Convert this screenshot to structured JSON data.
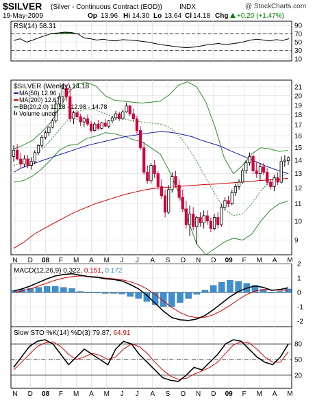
{
  "header": {
    "symbol": "$SILVER",
    "description": "(Silver - Continuous Contract (EOD))",
    "exchange": "INDX",
    "copyright": "@ StockCharts.com",
    "date": "19-May-2009",
    "op_label": "Op",
    "op": "13.96",
    "hi_label": "Hi",
    "hi": "14.30",
    "lo_label": "Lo",
    "lo": "13.64",
    "cl_label": "Cl",
    "cl": "14.18",
    "chg_label": "Chg",
    "chg": "+0.20 (+1.47%)",
    "chg_color": "#008000",
    "up_icon": "up-triangle-icon"
  },
  "colors": {
    "candle_up": "#000000",
    "candle_down": "#d0003a",
    "ma50": "#1a1aa0",
    "ma200": "#d00000",
    "bb": "#2c8a2c",
    "rsi_fill": "#2c6e2c",
    "macd": "#000000",
    "macd_signal": "#d00000",
    "macd_hist": "#3d8fd0",
    "sto_k": "#000000",
    "sto_d": "#d00000"
  },
  "x_axis_labels": [
    "N",
    "D",
    "08",
    "F",
    "M",
    "A",
    "M",
    "J",
    "J",
    "A",
    "S",
    "O",
    "N",
    "D",
    "09",
    "F",
    "M",
    "A",
    "M"
  ],
  "rsi_panel": {
    "label": "RSI(14)",
    "value": "58.31",
    "ticks": [
      "90",
      "70",
      "50",
      "30",
      "10"
    ],
    "upper": 70,
    "lower": 30
  },
  "price_panel": {
    "title": "$SILVER (Weekly)",
    "title_value": "14.18",
    "legend": [
      {
        "label": "MA(50)",
        "value": "12.96",
        "color": "#1a1aa0"
      },
      {
        "label": "MA(200)",
        "value": "12.67",
        "color": "#d00000"
      },
      {
        "label": "BB(20,2.0)",
        "value": "11.18 - 12.98 - 14.78",
        "color": "#2c8a2c"
      },
      {
        "label": "Volume undef",
        "value": "",
        "color": "#555555"
      }
    ],
    "y_ticks": [
      "21",
      "20",
      "19",
      "18",
      "17",
      "16",
      "15",
      "14",
      "13",
      "12",
      "11",
      "10",
      "9"
    ]
  },
  "macd_panel": {
    "label": "MACD(12,26,9)",
    "v1": "0.322",
    "v2": "0.151",
    "v3": "0.172",
    "ticks": [
      "2",
      "1",
      "0",
      "-1",
      "-2"
    ]
  },
  "sto_panel": {
    "label": "Slow STO %K(14) %D(3)",
    "v1": "79.87",
    "v2": "64.91",
    "ticks": [
      "80",
      "50",
      "20"
    ]
  },
  "chart_data": {
    "type": "candlestick",
    "title": "$SILVER (Weekly)",
    "x_range": [
      "2007-11",
      "2009-05"
    ],
    "y_scale": "log",
    "ylim": [
      8.3,
      21.8
    ],
    "candles": [
      {
        "o": 14.3,
        "h": 15.2,
        "l": 13.9,
        "c": 14.8
      },
      {
        "o": 14.8,
        "h": 15.3,
        "l": 14.0,
        "c": 14.1
      },
      {
        "o": 14.1,
        "h": 14.6,
        "l": 13.4,
        "c": 13.7
      },
      {
        "o": 13.7,
        "h": 14.4,
        "l": 13.5,
        "c": 14.1
      },
      {
        "o": 14.1,
        "h": 14.4,
        "l": 13.4,
        "c": 13.6
      },
      {
        "o": 13.6,
        "h": 14.2,
        "l": 13.3,
        "c": 13.9
      },
      {
        "o": 13.9,
        "h": 14.8,
        "l": 13.7,
        "c": 14.6
      },
      {
        "o": 14.6,
        "h": 15.3,
        "l": 14.4,
        "c": 15.2
      },
      {
        "o": 15.2,
        "h": 16.1,
        "l": 15.0,
        "c": 15.9
      },
      {
        "o": 15.9,
        "h": 16.5,
        "l": 15.7,
        "c": 16.3
      },
      {
        "o": 16.3,
        "h": 16.9,
        "l": 16.0,
        "c": 16.8
      },
      {
        "o": 16.8,
        "h": 17.6,
        "l": 16.7,
        "c": 17.4
      },
      {
        "o": 17.4,
        "h": 19.4,
        "l": 17.2,
        "c": 19.1
      },
      {
        "o": 19.1,
        "h": 20.3,
        "l": 18.8,
        "c": 19.9
      },
      {
        "o": 19.9,
        "h": 21.4,
        "l": 19.3,
        "c": 20.8
      },
      {
        "o": 20.8,
        "h": 21.3,
        "l": 19.4,
        "c": 19.9
      },
      {
        "o": 19.9,
        "h": 21.0,
        "l": 17.3,
        "c": 17.6
      },
      {
        "o": 17.6,
        "h": 18.4,
        "l": 17.1,
        "c": 18.2
      },
      {
        "o": 18.2,
        "h": 18.5,
        "l": 17.5,
        "c": 17.8
      },
      {
        "o": 17.8,
        "h": 18.1,
        "l": 16.9,
        "c": 17.3
      },
      {
        "o": 17.3,
        "h": 17.8,
        "l": 16.8,
        "c": 17.6
      },
      {
        "o": 17.6,
        "h": 18.0,
        "l": 16.9,
        "c": 17.1
      },
      {
        "o": 17.1,
        "h": 17.4,
        "l": 16.3,
        "c": 16.5
      },
      {
        "o": 16.5,
        "h": 17.3,
        "l": 16.4,
        "c": 17.1
      },
      {
        "o": 17.1,
        "h": 17.5,
        "l": 16.5,
        "c": 16.7
      },
      {
        "o": 16.7,
        "h": 17.3,
        "l": 16.6,
        "c": 17.2
      },
      {
        "o": 17.2,
        "h": 17.6,
        "l": 16.8,
        "c": 16.9
      },
      {
        "o": 16.9,
        "h": 17.5,
        "l": 16.7,
        "c": 17.4
      },
      {
        "o": 17.4,
        "h": 17.9,
        "l": 17.2,
        "c": 17.7
      },
      {
        "o": 17.7,
        "h": 18.4,
        "l": 17.5,
        "c": 18.1
      },
      {
        "o": 18.1,
        "h": 18.3,
        "l": 17.4,
        "c": 17.6
      },
      {
        "o": 17.6,
        "h": 18.5,
        "l": 17.5,
        "c": 18.3
      },
      {
        "o": 18.3,
        "h": 19.2,
        "l": 18.2,
        "c": 18.9
      },
      {
        "o": 18.9,
        "h": 19.0,
        "l": 17.9,
        "c": 18.1
      },
      {
        "o": 18.1,
        "h": 18.6,
        "l": 17.3,
        "c": 17.6
      },
      {
        "o": 17.6,
        "h": 17.9,
        "l": 16.2,
        "c": 16.5
      },
      {
        "o": 16.5,
        "h": 16.9,
        "l": 14.8,
        "c": 15.0
      },
      {
        "o": 15.0,
        "h": 15.5,
        "l": 12.9,
        "c": 13.1
      },
      {
        "o": 13.1,
        "h": 13.6,
        "l": 12.3,
        "c": 12.5
      },
      {
        "o": 12.5,
        "h": 13.8,
        "l": 12.3,
        "c": 13.6
      },
      {
        "o": 13.6,
        "h": 14.0,
        "l": 12.7,
        "c": 13.0
      },
      {
        "o": 13.0,
        "h": 13.2,
        "l": 11.9,
        "c": 12.1
      },
      {
        "o": 12.1,
        "h": 12.6,
        "l": 11.3,
        "c": 11.5
      },
      {
        "o": 11.5,
        "h": 11.9,
        "l": 10.2,
        "c": 10.5
      },
      {
        "o": 10.5,
        "h": 12.2,
        "l": 10.4,
        "c": 11.9
      },
      {
        "o": 11.9,
        "h": 13.1,
        "l": 11.7,
        "c": 12.8
      },
      {
        "o": 12.8,
        "h": 13.2,
        "l": 12.0,
        "c": 12.2
      },
      {
        "o": 12.2,
        "h": 12.6,
        "l": 11.2,
        "c": 11.4
      },
      {
        "o": 11.4,
        "h": 11.9,
        "l": 10.5,
        "c": 10.7
      },
      {
        "o": 10.7,
        "h": 11.2,
        "l": 9.6,
        "c": 9.8
      },
      {
        "o": 9.8,
        "h": 10.9,
        "l": 9.2,
        "c": 10.4
      },
      {
        "o": 10.4,
        "h": 10.8,
        "l": 9.5,
        "c": 9.7
      },
      {
        "o": 9.7,
        "h": 10.3,
        "l": 8.8,
        "c": 10.2
      },
      {
        "o": 10.2,
        "h": 10.5,
        "l": 9.7,
        "c": 9.9
      },
      {
        "o": 9.9,
        "h": 10.6,
        "l": 9.6,
        "c": 10.3
      },
      {
        "o": 10.3,
        "h": 10.6,
        "l": 9.8,
        "c": 10.0
      },
      {
        "o": 10.0,
        "h": 10.2,
        "l": 9.4,
        "c": 9.6
      },
      {
        "o": 9.6,
        "h": 10.4,
        "l": 9.5,
        "c": 10.2
      },
      {
        "o": 10.2,
        "h": 10.5,
        "l": 9.6,
        "c": 9.8
      },
      {
        "o": 9.8,
        "h": 11.0,
        "l": 9.7,
        "c": 10.8
      },
      {
        "o": 10.8,
        "h": 11.4,
        "l": 10.6,
        "c": 11.2
      },
      {
        "o": 11.2,
        "h": 11.5,
        "l": 10.8,
        "c": 11.0
      },
      {
        "o": 11.0,
        "h": 11.9,
        "l": 10.9,
        "c": 11.7
      },
      {
        "o": 11.7,
        "h": 12.3,
        "l": 11.5,
        "c": 12.1
      },
      {
        "o": 12.1,
        "h": 12.6,
        "l": 11.9,
        "c": 12.4
      },
      {
        "o": 12.4,
        "h": 13.4,
        "l": 12.3,
        "c": 13.2
      },
      {
        "o": 13.2,
        "h": 14.0,
        "l": 13.0,
        "c": 13.8
      },
      {
        "o": 13.8,
        "h": 14.6,
        "l": 13.6,
        "c": 14.3
      },
      {
        "o": 14.3,
        "h": 14.5,
        "l": 13.0,
        "c": 13.2
      },
      {
        "o": 13.2,
        "h": 13.9,
        "l": 12.7,
        "c": 13.0
      },
      {
        "o": 13.0,
        "h": 13.8,
        "l": 12.5,
        "c": 13.5
      },
      {
        "o": 13.5,
        "h": 13.8,
        "l": 12.9,
        "c": 13.1
      },
      {
        "o": 13.1,
        "h": 13.4,
        "l": 12.2,
        "c": 12.4
      },
      {
        "o": 12.4,
        "h": 12.6,
        "l": 11.9,
        "c": 12.1
      },
      {
        "o": 12.1,
        "h": 12.9,
        "l": 11.8,
        "c": 12.7
      },
      {
        "o": 12.7,
        "h": 13.1,
        "l": 12.2,
        "c": 12.4
      },
      {
        "o": 12.4,
        "h": 14.3,
        "l": 12.3,
        "c": 13.9
      },
      {
        "o": 13.9,
        "h": 14.4,
        "l": 13.5,
        "c": 14.0
      },
      {
        "o": 13.96,
        "h": 14.3,
        "l": 13.64,
        "c": 14.18
      }
    ],
    "ma50": [
      13.1,
      13.4,
      13.6,
      13.8,
      14.0,
      14.2,
      14.4,
      14.6,
      14.8,
      15.0,
      15.2,
      15.35,
      15.5,
      15.65,
      15.8,
      15.95,
      16.05,
      16.15,
      16.25,
      16.35,
      16.4,
      16.35,
      16.25,
      16.1,
      15.95,
      15.7,
      15.5,
      15.3,
      15.1,
      14.8,
      14.55,
      14.3,
      14.05,
      13.8,
      13.55,
      13.35,
      13.15,
      13.0
    ],
    "ma200": [
      8.6,
      8.9,
      9.3,
      9.6,
      9.9,
      10.2,
      10.5,
      10.75,
      11.0,
      11.2,
      11.4,
      11.6,
      11.75,
      11.9,
      12.0,
      12.05,
      12.1,
      12.15,
      12.2,
      12.25,
      12.28,
      12.33,
      12.38,
      12.43,
      12.5,
      12.55,
      12.6,
      12.67
    ],
    "bb_upper": [
      14.9,
      15.2,
      15.6,
      16.3,
      17.2,
      18.6,
      20.4,
      21.4,
      21.5,
      21.1,
      20.0,
      19.5,
      19.4,
      19.3,
      19.2,
      19.3,
      19.4,
      20.1,
      21.2,
      21.6,
      21.0,
      19.3,
      16.8,
      14.2,
      13.0,
      13.6,
      14.5,
      15.0,
      14.9,
      14.7,
      14.78
    ],
    "bb_middle": [
      13.6,
      13.8,
      14.2,
      14.8,
      15.6,
      16.6,
      17.6,
      18.3,
      18.6,
      18.5,
      18.1,
      17.8,
      17.6,
      17.4,
      17.3,
      17.2,
      17.1,
      16.8,
      16.1,
      15.1,
      13.9,
      12.7,
      11.6,
      10.7,
      10.3,
      10.4,
      11.0,
      11.8,
      12.5,
      12.8,
      12.98
    ],
    "bb_lower": [
      12.4,
      12.5,
      12.8,
      13.3,
      14.0,
      14.8,
      15.2,
      15.3,
      15.8,
      16.0,
      16.3,
      16.2,
      16.0,
      15.7,
      15.5,
      15.0,
      14.5,
      13.2,
      11.7,
      10.1,
      8.8,
      8.3,
      8.6,
      8.9,
      9.1,
      9.0,
      9.3,
      10.0,
      10.6,
      11.0,
      11.18
    ],
    "rsi": [
      54,
      58,
      50,
      55,
      61,
      66,
      71,
      72,
      74,
      73,
      70,
      60,
      58,
      55,
      57,
      54,
      53,
      56,
      55,
      54,
      52,
      50,
      47,
      44,
      42,
      40,
      38,
      37,
      38,
      40,
      43,
      45,
      47,
      44,
      46,
      48,
      51,
      55,
      57,
      55,
      53,
      56,
      54,
      58.31
    ],
    "macd": [
      0.1,
      0.25,
      0.45,
      0.7,
      0.95,
      1.15,
      1.25,
      1.3,
      1.2,
      1.1,
      1.05,
      0.95,
      0.9,
      0.8,
      0.55,
      0.25,
      -0.2,
      -0.75,
      -1.3,
      -1.75,
      -1.9,
      -1.95,
      -1.85,
      -1.6,
      -1.2,
      -0.75,
      -0.3,
      0.05,
      0.3,
      0.45,
      0.35,
      0.15,
      0.2,
      0.322
    ],
    "macd_signal": [
      0.0,
      0.1,
      0.25,
      0.45,
      0.65,
      0.85,
      1.0,
      1.1,
      1.15,
      1.12,
      1.08,
      1.0,
      0.95,
      0.88,
      0.75,
      0.55,
      0.25,
      -0.15,
      -0.6,
      -1.05,
      -1.4,
      -1.65,
      -1.75,
      -1.72,
      -1.55,
      -1.25,
      -0.9,
      -0.5,
      -0.15,
      0.1,
      0.2,
      0.18,
      0.15,
      0.151
    ],
    "sto_k": [
      35,
      55,
      75,
      85,
      88,
      80,
      60,
      40,
      55,
      70,
      60,
      50,
      40,
      70,
      85,
      80,
      60,
      45,
      30,
      15,
      10,
      8,
      20,
      35,
      30,
      45,
      60,
      80,
      88,
      85,
      70,
      55,
      45,
      40,
      55,
      79.87
    ],
    "sto_d": [
      30,
      45,
      60,
      75,
      82,
      84,
      75,
      60,
      50,
      55,
      62,
      58,
      50,
      55,
      70,
      80,
      75,
      62,
      45,
      30,
      18,
      12,
      14,
      22,
      28,
      35,
      45,
      62,
      78,
      84,
      82,
      70,
      55,
      45,
      45,
      64.91
    ]
  }
}
